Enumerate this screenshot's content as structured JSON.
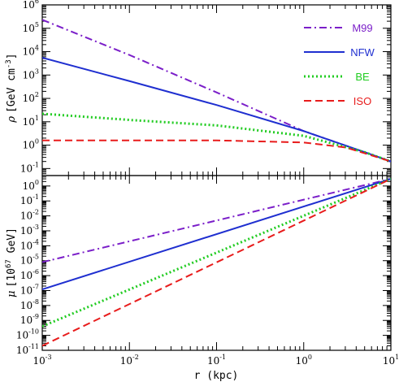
{
  "chart_data": [
    {
      "type": "line",
      "panel": "top",
      "xlabel": "",
      "ylabel_prefix": "ρ",
      "ylabel": "[GeV cm",
      "ylabel_exp": "-3",
      "ylabel_suffix": "]",
      "xscale": "log",
      "yscale": "log",
      "xlim": [
        0.001,
        10
      ],
      "ylim": [
        0.05,
        1000000
      ],
      "yticks": [
        {
          "base": "10",
          "exp": "-1"
        },
        {
          "base": "10",
          "exp": "0"
        },
        {
          "base": "10",
          "exp": "1"
        },
        {
          "base": "10",
          "exp": "2"
        },
        {
          "base": "10",
          "exp": "3"
        },
        {
          "base": "10",
          "exp": "4"
        },
        {
          "base": "10",
          "exp": "5"
        },
        {
          "base": "10",
          "exp": "6"
        }
      ],
      "legend_position": "top-right",
      "series": [
        {
          "name": "M99",
          "color": "#7b1fc9",
          "dash": "dashdot",
          "x": [
            0.001,
            0.01,
            0.1,
            1,
            5,
            10
          ],
          "y": [
            230000,
            7200,
            180,
            4,
            0.5,
            0.2
          ]
        },
        {
          "name": "NFW",
          "color": "#1f2fd0",
          "dash": "solid",
          "x": [
            0.001,
            0.01,
            0.1,
            1,
            5,
            10
          ],
          "y": [
            5500,
            550,
            52,
            4,
            0.5,
            0.2
          ]
        },
        {
          "name": "BE",
          "color": "#22cc22",
          "dash": "dotted",
          "x": [
            0.001,
            0.01,
            0.1,
            1,
            5,
            10
          ],
          "y": [
            22,
            12,
            7,
            2.5,
            0.5,
            0.2
          ]
        },
        {
          "name": "ISO",
          "color": "#e81c1c",
          "dash": "dashed",
          "x": [
            0.001,
            0.01,
            0.1,
            1,
            3,
            5,
            10
          ],
          "y": [
            1.6,
            1.6,
            1.6,
            1.3,
            0.8,
            0.45,
            0.2
          ]
        }
      ]
    },
    {
      "type": "line",
      "panel": "bottom",
      "xlabel": "r (kpc)",
      "ylabel_prefix": "μ",
      "ylabel": "[10",
      "ylabel_exp": "67",
      "ylabel_suffix": " GeV]",
      "xscale": "log",
      "yscale": "log",
      "xlim": [
        0.001,
        10
      ],
      "ylim": [
        1e-11,
        5
      ],
      "xticks": [
        {
          "base": "10",
          "exp": "-3"
        },
        {
          "base": "10",
          "exp": "-2"
        },
        {
          "base": "10",
          "exp": "-1"
        },
        {
          "base": "10",
          "exp": "0"
        },
        {
          "base": "10",
          "exp": "1"
        }
      ],
      "yticks": [
        {
          "base": "10",
          "exp": "-11"
        },
        {
          "base": "10",
          "exp": "-10"
        },
        {
          "base": "10",
          "exp": "-9"
        },
        {
          "base": "10",
          "exp": "-8"
        },
        {
          "base": "10",
          "exp": "-7"
        },
        {
          "base": "10",
          "exp": "-6"
        },
        {
          "base": "10",
          "exp": "-5"
        },
        {
          "base": "10",
          "exp": "-4"
        },
        {
          "base": "10",
          "exp": "-3"
        },
        {
          "base": "10",
          "exp": "-2"
        },
        {
          "base": "10",
          "exp": "-1"
        },
        {
          "base": "10",
          "exp": "0"
        }
      ],
      "series": [
        {
          "name": "M99",
          "color": "#7b1fc9",
          "dash": "dashdot",
          "x": [
            0.001,
            10
          ],
          "y": [
            8e-06,
            3
          ]
        },
        {
          "name": "NFW",
          "color": "#1f2fd0",
          "dash": "solid",
          "x": [
            0.001,
            10
          ],
          "y": [
            1.2e-07,
            3
          ]
        },
        {
          "name": "BE",
          "color": "#22cc22",
          "dash": "dotted",
          "x": [
            0.001,
            10
          ],
          "y": [
            4e-10,
            3
          ]
        },
        {
          "name": "ISO",
          "color": "#e81c1c",
          "dash": "dashed",
          "x": [
            0.001,
            10
          ],
          "y": [
            2e-11,
            3
          ]
        }
      ]
    }
  ]
}
